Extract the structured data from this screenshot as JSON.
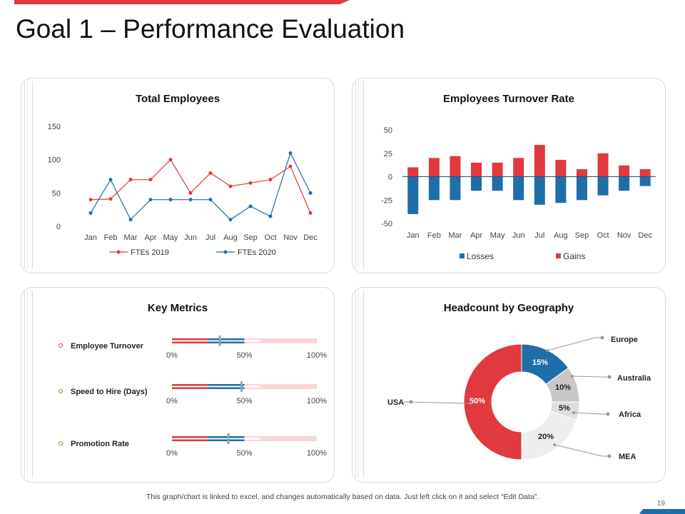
{
  "page": {
    "title": "Goal 1 – Performance Evaluation",
    "footer": "This graph/chart is linked to excel, and changes automatically based on data. Just left click on it and select “Edit Data”.",
    "page_number": "19"
  },
  "colors": {
    "red": "#e0393e",
    "blue": "#1f6ea7",
    "light_red": "#f7d6d7",
    "grey": "#c8c8c8",
    "light_grey": "#eeeeee"
  },
  "chart_data": [
    {
      "id": "total-employees",
      "type": "line",
      "title": "Total Employees",
      "categories": [
        "Jan",
        "Feb",
        "Mar",
        "Apr",
        "May",
        "Jun",
        "Jul",
        "Aug",
        "Sep",
        "Oct",
        "Nov",
        "Dec"
      ],
      "series": [
        {
          "name": "FTEs 2019",
          "color": "#e0393e",
          "values": [
            40,
            41,
            70,
            70,
            100,
            50,
            80,
            60,
            65,
            70,
            90,
            20
          ]
        },
        {
          "name": "FTEs 2020",
          "color": "#1f6ea7",
          "values": [
            20,
            70,
            10,
            40,
            40,
            40,
            40,
            10,
            30,
            15,
            110,
            50
          ]
        }
      ],
      "yticks": [
        "0",
        "50",
        "100",
        "150"
      ],
      "ylim": [
        0,
        150
      ],
      "legend": "bottom"
    },
    {
      "id": "turnover-rate",
      "type": "bar",
      "title": "Employees Turnover Rate",
      "categories": [
        "Jan",
        "Feb",
        "Mar",
        "Apr",
        "May",
        "Jun",
        "Jul",
        "Aug",
        "Sep",
        "Oct",
        "Nov",
        "Dec"
      ],
      "series": [
        {
          "name": "Losses",
          "color": "#1f6ea7",
          "values": [
            -40,
            -25,
            -25,
            -15,
            -15,
            -25,
            -30,
            -28,
            -25,
            -20,
            -15,
            -10
          ]
        },
        {
          "name": "Gains",
          "color": "#e0393e",
          "values": [
            10,
            20,
            22,
            15,
            15,
            20,
            34,
            18,
            8,
            25,
            12,
            8
          ]
        }
      ],
      "yticks": [
        "50",
        "25",
        "0",
        "-25",
        "-50"
      ],
      "ylim": [
        -50,
        50
      ],
      "legend": "bottom"
    },
    {
      "id": "key-metrics",
      "type": "bar",
      "title": "Key Metrics",
      "metrics": [
        {
          "label": "Employee Turnover",
          "value": 0.33,
          "color": "#e0393e"
        },
        {
          "label": "Speed to Hire (Days)",
          "value": 0.48,
          "color": "#5aaa2e"
        },
        {
          "label": "Promotion Rate",
          "value": 0.39,
          "color": "#5aaa2e"
        }
      ],
      "axis_ticks": [
        "0%",
        "50%",
        "100%"
      ]
    },
    {
      "id": "headcount-geo",
      "type": "pie",
      "title": "Headcount by Geography",
      "slices": [
        {
          "label": "Europe",
          "value": 15,
          "display": "15%",
          "color": "#1f6ea7"
        },
        {
          "label": "Australia",
          "value": 10,
          "display": "10%",
          "color": "#c8c8c8"
        },
        {
          "label": "Africa",
          "value": 5,
          "display": "5%",
          "color": "#dedede"
        },
        {
          "label": "MEA",
          "value": 20,
          "display": "20%",
          "color": "#eeeeee"
        },
        {
          "label": "USA",
          "value": 50,
          "display": "50%",
          "color": "#e0393e"
        }
      ]
    }
  ]
}
